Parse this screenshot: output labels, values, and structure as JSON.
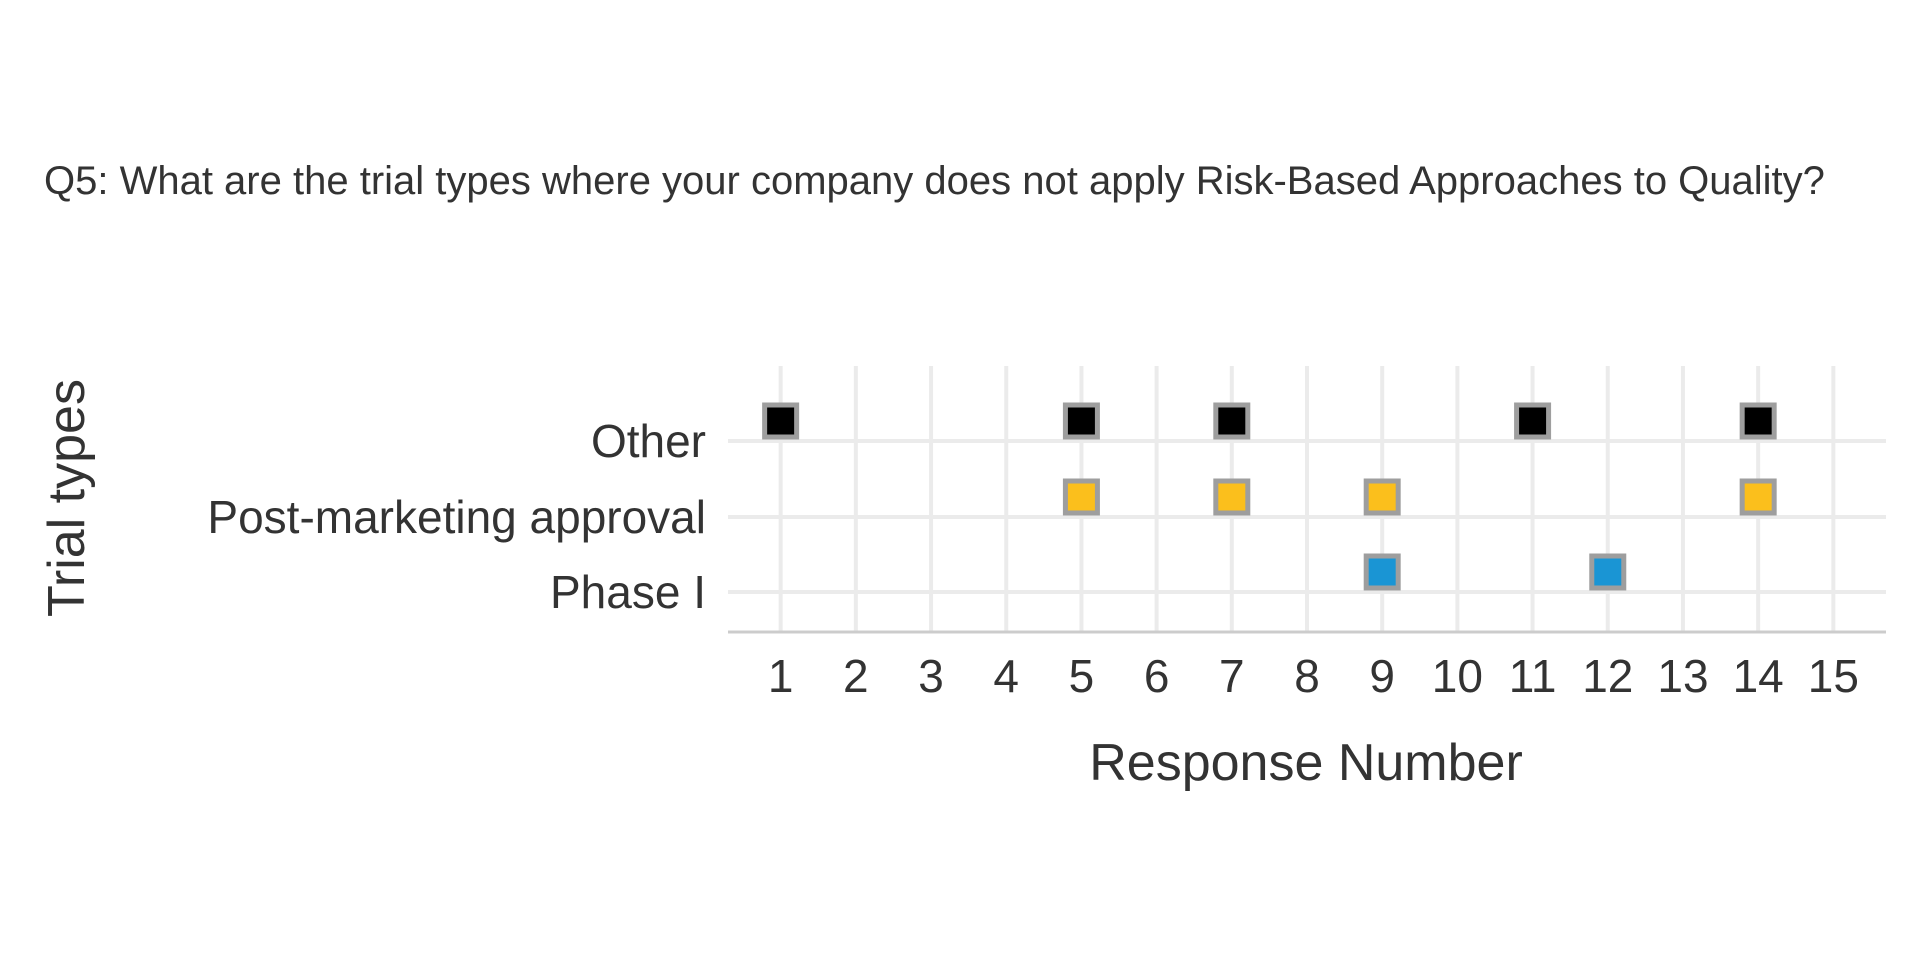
{
  "chart_data": {
    "type": "scatter",
    "title": "Q5: What are the trial types where your company does not apply Risk-Based Approaches to Quality?",
    "xlabel": "Response Number",
    "ylabel": "Trial types",
    "x_ticks": [
      1,
      2,
      3,
      4,
      5,
      6,
      7,
      8,
      9,
      10,
      11,
      12,
      13,
      14,
      15
    ],
    "xlim": [
      0.3,
      15.7
    ],
    "y_categories": [
      "Phase I",
      "Post-marketing approval",
      "Other"
    ],
    "grid": true,
    "legend": "none",
    "marker": "square",
    "marker_edge_color": "#9e9e9e",
    "series": [
      {
        "category": "Other",
        "color": "#000000",
        "x": [
          1,
          5,
          7,
          11,
          14
        ]
      },
      {
        "category": "Post-marketing approval",
        "color": "#fbbf1c",
        "x": [
          5,
          7,
          9,
          14
        ]
      },
      {
        "category": "Phase I",
        "color": "#1a95d4",
        "x": [
          9,
          12
        ]
      }
    ]
  }
}
